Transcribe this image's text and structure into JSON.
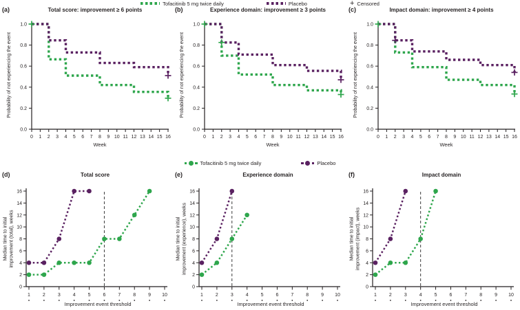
{
  "colors": {
    "tofacitinib": "#2ea64c",
    "placebo": "#5a2161",
    "axis": "#231f20",
    "censor_green": "#2ea64c",
    "censor_purple": "#5a2161",
    "threshold_line": "#3a3a3a"
  },
  "legend_top": {
    "items": [
      {
        "label": "Tofacitinib 5 mg twice daily",
        "marker": "dash-swatch",
        "color": "#2ea64c"
      },
      {
        "label": "Placebo",
        "marker": "dash-swatch",
        "color": "#5a2161"
      },
      {
        "label": "Censored",
        "marker": "plus-icon",
        "symbol": "+",
        "color": "#231f20"
      }
    ]
  },
  "legend_bottom": {
    "items": [
      {
        "label": "Tofacitinib 5 mg twice daily",
        "marker": "dash-dot-swatch",
        "color": "#2ea64c"
      },
      {
        "label": "Placebo",
        "marker": "dash-dot-swatch",
        "color": "#5a2161"
      }
    ]
  },
  "chart_data": [
    {
      "type": "line",
      "variant": "km-step",
      "panel_label": "(a)",
      "title": "Total score: improvement ≥ 6 points",
      "xlabel": "Week",
      "ylabel": "Probability of not experiencing the event",
      "xlim": [
        0,
        16
      ],
      "ylim": [
        0.0,
        1.0
      ],
      "xticks": [
        0,
        1,
        2,
        3,
        4,
        5,
        6,
        7,
        8,
        9,
        10,
        11,
        12,
        13,
        14,
        15,
        16
      ],
      "yticks": [
        0,
        0.2,
        0.4,
        0.6,
        0.8,
        1.0
      ],
      "ytick_labels": [
        "0.0",
        "0.2",
        "0.4",
        "0.6",
        "0.8",
        "1.0"
      ],
      "series": [
        {
          "name": "Tofacitinib 5 mg twice daily",
          "color": "#2ea64c",
          "steps": [
            [
              0,
              1.0
            ],
            [
              2,
              1.0
            ],
            [
              2,
              0.665
            ],
            [
              4,
              0.665
            ],
            [
              4,
              0.51
            ],
            [
              8,
              0.51
            ],
            [
              8,
              0.42
            ],
            [
              12,
              0.42
            ],
            [
              12,
              0.355
            ],
            [
              16,
              0.355
            ],
            [
              16,
              0.295
            ]
          ]
        },
        {
          "name": "Placebo",
          "color": "#5a2161",
          "steps": [
            [
              0,
              1.0
            ],
            [
              2,
              1.0
            ],
            [
              2,
              0.845
            ],
            [
              4,
              0.845
            ],
            [
              4,
              0.73
            ],
            [
              8,
              0.73
            ],
            [
              8,
              0.63
            ],
            [
              12,
              0.63
            ],
            [
              12,
              0.59
            ],
            [
              16,
              0.59
            ],
            [
              16,
              0.51
            ]
          ]
        }
      ],
      "censored": [
        {
          "x": 0,
          "y": 1.0,
          "color": "#2ea64c"
        },
        {
          "x": 16,
          "y": 0.51,
          "color": "#5a2161"
        },
        {
          "x": 16,
          "y": 0.295,
          "color": "#2ea64c"
        }
      ]
    },
    {
      "type": "line",
      "variant": "km-step",
      "panel_label": "(b)",
      "title": "Experience domain: improvement ≥ 3 points",
      "xlabel": "Week",
      "ylabel": "Probability of not experiencing the event",
      "xlim": [
        0,
        16
      ],
      "ylim": [
        0.0,
        1.0
      ],
      "xticks": [
        0,
        1,
        2,
        3,
        4,
        5,
        6,
        7,
        8,
        9,
        10,
        11,
        12,
        13,
        14,
        15,
        16
      ],
      "yticks": [
        0,
        0.2,
        0.4,
        0.6,
        0.8,
        1.0
      ],
      "ytick_labels": [
        "0.0",
        "0.2",
        "0.4",
        "0.6",
        "0.8",
        "1.0"
      ],
      "series": [
        {
          "name": "Tofacitinib 5 mg twice daily",
          "color": "#2ea64c",
          "steps": [
            [
              0,
              1.0
            ],
            [
              2,
              1.0
            ],
            [
              2,
              0.7
            ],
            [
              4,
              0.7
            ],
            [
              4,
              0.52
            ],
            [
              8,
              0.52
            ],
            [
              8,
              0.42
            ],
            [
              12,
              0.42
            ],
            [
              12,
              0.37
            ],
            [
              16,
              0.37
            ],
            [
              16,
              0.33
            ]
          ]
        },
        {
          "name": "Placebo",
          "color": "#5a2161",
          "steps": [
            [
              0,
              1.0
            ],
            [
              2,
              1.0
            ],
            [
              2,
              0.825
            ],
            [
              4,
              0.825
            ],
            [
              4,
              0.71
            ],
            [
              8,
              0.71
            ],
            [
              8,
              0.61
            ],
            [
              12,
              0.61
            ],
            [
              12,
              0.555
            ],
            [
              16,
              0.555
            ],
            [
              16,
              0.47
            ]
          ]
        }
      ],
      "censored": [
        {
          "x": 0,
          "y": 1.0,
          "color": "#2ea64c"
        },
        {
          "x": 2,
          "y": 0.825,
          "color": "#2ea64c"
        },
        {
          "x": 16,
          "y": 0.47,
          "color": "#5a2161"
        },
        {
          "x": 16,
          "y": 0.33,
          "color": "#2ea64c"
        }
      ]
    },
    {
      "type": "line",
      "variant": "km-step",
      "panel_label": "(c)",
      "title": "Impact domain: improvement ≥ 4 points",
      "xlabel": "Week",
      "ylabel": "Probability of not experiencing the event",
      "xlim": [
        0,
        16
      ],
      "ylim": [
        0.0,
        1.0
      ],
      "xticks": [
        0,
        1,
        2,
        3,
        4,
        5,
        6,
        7,
        8,
        9,
        10,
        11,
        12,
        13,
        14,
        15,
        16
      ],
      "yticks": [
        0,
        0.2,
        0.4,
        0.6,
        0.8,
        1.0
      ],
      "ytick_labels": [
        "0.0",
        "0.2",
        "0.4",
        "0.6",
        "0.8",
        "1.0"
      ],
      "series": [
        {
          "name": "Tofacitinib 5 mg twice daily",
          "color": "#2ea64c",
          "steps": [
            [
              0,
              1.0
            ],
            [
              2,
              1.0
            ],
            [
              2,
              0.73
            ],
            [
              4,
              0.73
            ],
            [
              4,
              0.59
            ],
            [
              8,
              0.59
            ],
            [
              8,
              0.47
            ],
            [
              12,
              0.47
            ],
            [
              12,
              0.42
            ],
            [
              16,
              0.42
            ],
            [
              16,
              0.335
            ]
          ]
        },
        {
          "name": "Placebo",
          "color": "#5a2161",
          "steps": [
            [
              0,
              1.0
            ],
            [
              2,
              1.0
            ],
            [
              2,
              0.845
            ],
            [
              4,
              0.845
            ],
            [
              4,
              0.74
            ],
            [
              8,
              0.74
            ],
            [
              8,
              0.66
            ],
            [
              12,
              0.66
            ],
            [
              12,
              0.61
            ],
            [
              16,
              0.61
            ],
            [
              16,
              0.54
            ]
          ]
        }
      ],
      "censored": [
        {
          "x": 0,
          "y": 1.0,
          "color": "#2ea64c"
        },
        {
          "x": 2,
          "y": 0.845,
          "color": "#5a2161"
        },
        {
          "x": 16,
          "y": 0.54,
          "color": "#5a2161"
        },
        {
          "x": 16,
          "y": 0.335,
          "color": "#2ea64c"
        }
      ]
    },
    {
      "type": "line",
      "variant": "threshold-step",
      "panel_label": "(d)",
      "title": "Total score",
      "xlabel": "Improvement event threshold",
      "ylabel": "Median time to initial improvement (total), weeks",
      "ylabel_lines": [
        "Median time to initial",
        "improvement (total), weeks"
      ],
      "xlim": [
        1,
        10
      ],
      "ylim": [
        0,
        16
      ],
      "xticks": [
        1,
        2,
        3,
        4,
        5,
        6,
        7,
        8,
        9,
        10
      ],
      "yticks": [
        0,
        2,
        4,
        6,
        8,
        10,
        12,
        14,
        16
      ],
      "vline_x": 6,
      "series": [
        {
          "name": "Tofacitinib 5 mg twice daily",
          "color": "#2ea64c",
          "points": [
            [
              1,
              2
            ],
            [
              2,
              2
            ],
            [
              3,
              4
            ],
            [
              4,
              4
            ],
            [
              5,
              4
            ],
            [
              6,
              8
            ],
            [
              7,
              8
            ],
            [
              8,
              12
            ],
            [
              9,
              16
            ]
          ]
        },
        {
          "name": "Placebo",
          "color": "#5a2161",
          "points": [
            [
              1,
              4
            ],
            [
              2,
              4
            ],
            [
              3,
              8
            ],
            [
              4,
              16
            ],
            [
              5,
              16
            ]
          ]
        }
      ]
    },
    {
      "type": "line",
      "variant": "threshold-step",
      "panel_label": "(e)",
      "title": "Experience domain",
      "xlabel": "Improvement event threshold",
      "ylabel": "Median time to initial improvement (experience), weeks",
      "ylabel_lines": [
        "Median time to initial",
        "improvement (experience), weeks"
      ],
      "xlim": [
        1,
        10
      ],
      "ylim": [
        0,
        16
      ],
      "xticks": [
        1,
        2,
        3,
        4,
        5,
        6,
        7,
        8,
        9,
        10
      ],
      "yticks": [
        0,
        2,
        4,
        6,
        8,
        10,
        12,
        14,
        16
      ],
      "vline_x": 3,
      "series": [
        {
          "name": "Tofacitinib 5 mg twice daily",
          "color": "#2ea64c",
          "points": [
            [
              1,
              2
            ],
            [
              2,
              4
            ],
            [
              3,
              8
            ],
            [
              4,
              12
            ]
          ]
        },
        {
          "name": "Placebo",
          "color": "#5a2161",
          "points": [
            [
              1,
              4
            ],
            [
              2,
              8
            ],
            [
              3,
              16
            ]
          ]
        }
      ]
    },
    {
      "type": "line",
      "variant": "threshold-step",
      "panel_label": "(f)",
      "title": "Impact domain",
      "xlabel": "Improvement event threshold",
      "ylabel": "Median time to initial improvement (impact), weeks",
      "ylabel_lines": [
        "Median time to initial",
        "improvement (impact), weeks"
      ],
      "xlim": [
        1,
        10
      ],
      "ylim": [
        0,
        16
      ],
      "xticks": [
        1,
        2,
        3,
        4,
        5,
        6,
        7,
        8,
        9,
        10
      ],
      "yticks": [
        0,
        2,
        4,
        6,
        8,
        10,
        12,
        14,
        16
      ],
      "vline_x": 4,
      "series": [
        {
          "name": "Tofacitinib 5 mg twice daily",
          "color": "#2ea64c",
          "points": [
            [
              1,
              2
            ],
            [
              2,
              4
            ],
            [
              3,
              4
            ],
            [
              4,
              8
            ],
            [
              5,
              16
            ]
          ]
        },
        {
          "name": "Placebo",
          "color": "#5a2161",
          "points": [
            [
              1,
              4
            ],
            [
              2,
              8
            ],
            [
              3,
              16
            ]
          ]
        }
      ]
    }
  ]
}
